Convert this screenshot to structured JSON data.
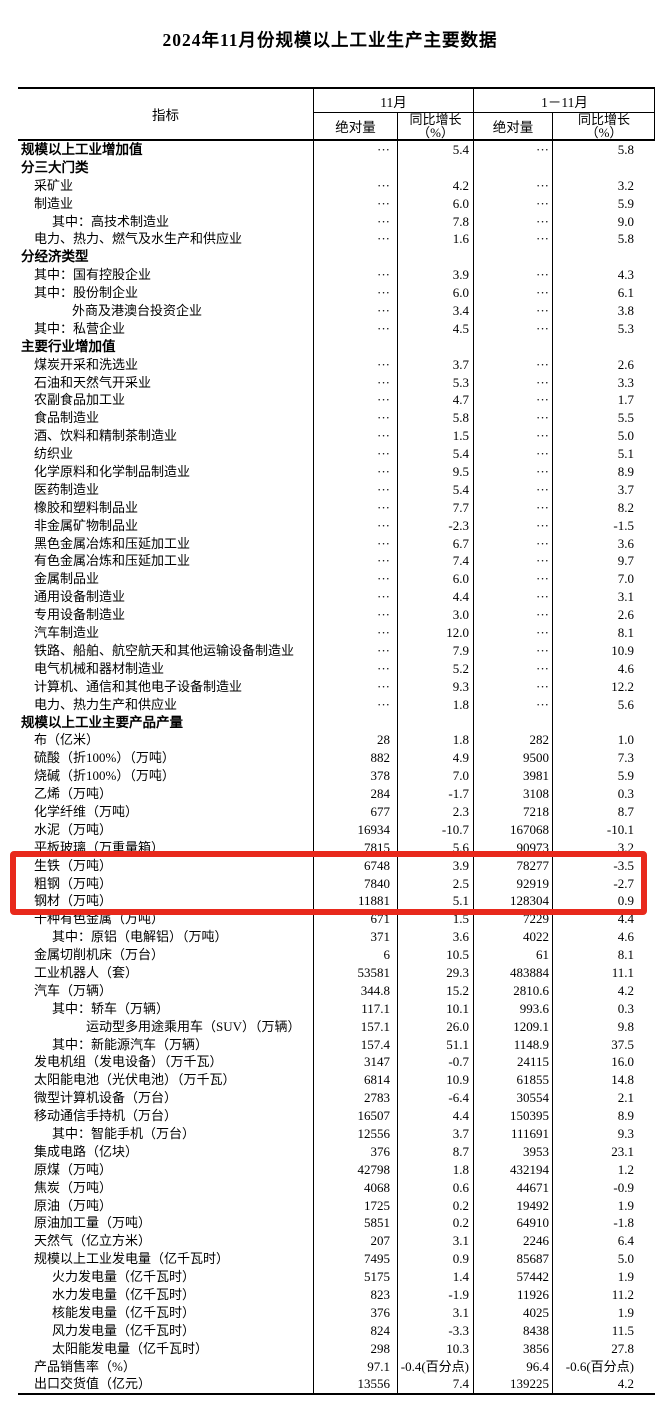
{
  "title": "2024年11月份规模以上工业生产主要数据",
  "table": {
    "highlight_color": "#e8291c",
    "header": {
      "indicator": "指标",
      "group_nov": "11月",
      "group_cum": "1－11月",
      "abs_nov": "绝对量",
      "yoy_nov": "同比增长\n（%）",
      "abs_cum": "绝对量",
      "yoy_cum": "同比增长\n（%）"
    },
    "rows": [
      {
        "l": "规模以上工业增加值",
        "i": 0,
        "b": true,
        "v": [
          "···",
          "5.4",
          "···",
          "5.8"
        ]
      },
      {
        "l": "分三大门类",
        "i": 0,
        "b": true,
        "v": [
          "",
          "",
          "",
          ""
        ]
      },
      {
        "l": "采矿业",
        "i": 1,
        "v": [
          "···",
          "4.2",
          "···",
          "3.2"
        ]
      },
      {
        "l": "制造业",
        "i": 1,
        "v": [
          "···",
          "6.0",
          "···",
          "5.9"
        ]
      },
      {
        "l": "其中：高技术制造业",
        "i": 2,
        "v": [
          "···",
          "7.8",
          "···",
          "9.0"
        ]
      },
      {
        "l": "电力、热力、燃气及水生产和供应业",
        "i": 1,
        "v": [
          "···",
          "1.6",
          "···",
          "5.8"
        ]
      },
      {
        "l": "分经济类型",
        "i": 0,
        "b": true,
        "v": [
          "",
          "",
          "",
          ""
        ]
      },
      {
        "l": "其中：国有控股企业",
        "i": 1,
        "v": [
          "···",
          "3.9",
          "···",
          "4.3"
        ]
      },
      {
        "l": "其中：股份制企业",
        "i": 1,
        "v": [
          "···",
          "6.0",
          "···",
          "6.1"
        ]
      },
      {
        "l": "外商及港澳台投资企业",
        "i": 3,
        "v": [
          "···",
          "3.4",
          "···",
          "3.8"
        ]
      },
      {
        "l": "其中：私营企业",
        "i": 1,
        "v": [
          "···",
          "4.5",
          "···",
          "5.3"
        ]
      },
      {
        "l": "主要行业增加值",
        "i": 0,
        "b": true,
        "v": [
          "",
          "",
          "",
          ""
        ]
      },
      {
        "l": "煤炭开采和洗选业",
        "i": 1,
        "v": [
          "···",
          "3.7",
          "···",
          "2.6"
        ]
      },
      {
        "l": "石油和天然气开采业",
        "i": 1,
        "v": [
          "···",
          "5.3",
          "···",
          "3.3"
        ]
      },
      {
        "l": "农副食品加工业",
        "i": 1,
        "v": [
          "···",
          "4.7",
          "···",
          "1.7"
        ]
      },
      {
        "l": "食品制造业",
        "i": 1,
        "v": [
          "···",
          "5.8",
          "···",
          "5.5"
        ]
      },
      {
        "l": "酒、饮料和精制茶制造业",
        "i": 1,
        "v": [
          "···",
          "1.5",
          "···",
          "5.0"
        ]
      },
      {
        "l": "纺织业",
        "i": 1,
        "v": [
          "···",
          "5.4",
          "···",
          "5.1"
        ]
      },
      {
        "l": "化学原料和化学制品制造业",
        "i": 1,
        "v": [
          "···",
          "9.5",
          "···",
          "8.9"
        ]
      },
      {
        "l": "医药制造业",
        "i": 1,
        "v": [
          "···",
          "5.4",
          "···",
          "3.7"
        ]
      },
      {
        "l": "橡胶和塑料制品业",
        "i": 1,
        "v": [
          "···",
          "7.7",
          "···",
          "8.2"
        ]
      },
      {
        "l": "非金属矿物制品业",
        "i": 1,
        "v": [
          "···",
          "-2.3",
          "···",
          "-1.5"
        ]
      },
      {
        "l": "黑色金属冶炼和压延加工业",
        "i": 1,
        "v": [
          "···",
          "6.7",
          "···",
          "3.6"
        ]
      },
      {
        "l": "有色金属冶炼和压延加工业",
        "i": 1,
        "v": [
          "···",
          "7.4",
          "···",
          "9.7"
        ]
      },
      {
        "l": "金属制品业",
        "i": 1,
        "v": [
          "···",
          "6.0",
          "···",
          "7.0"
        ]
      },
      {
        "l": "通用设备制造业",
        "i": 1,
        "v": [
          "···",
          "4.4",
          "···",
          "3.1"
        ]
      },
      {
        "l": "专用设备制造业",
        "i": 1,
        "v": [
          "···",
          "3.0",
          "···",
          "2.6"
        ]
      },
      {
        "l": "汽车制造业",
        "i": 1,
        "v": [
          "···",
          "12.0",
          "···",
          "8.1"
        ]
      },
      {
        "l": "铁路、船舶、航空航天和其他运输设备制造业",
        "i": 1,
        "v": [
          "···",
          "7.9",
          "···",
          "10.9"
        ]
      },
      {
        "l": "电气机械和器材制造业",
        "i": 1,
        "v": [
          "···",
          "5.2",
          "···",
          "4.6"
        ]
      },
      {
        "l": "计算机、通信和其他电子设备制造业",
        "i": 1,
        "v": [
          "···",
          "9.3",
          "···",
          "12.2"
        ]
      },
      {
        "l": "电力、热力生产和供应业",
        "i": 1,
        "v": [
          "···",
          "1.8",
          "···",
          "5.6"
        ]
      },
      {
        "l": "规模以上工业主要产品产量",
        "i": 0,
        "b": true,
        "v": [
          "",
          "",
          "",
          ""
        ]
      },
      {
        "l": "布（亿米）",
        "i": 1,
        "v": [
          "28",
          "1.8",
          "282",
          "1.0"
        ]
      },
      {
        "l": "硫酸（折100%）（万吨）",
        "i": 1,
        "v": [
          "882",
          "4.9",
          "9500",
          "7.3"
        ]
      },
      {
        "l": "烧碱（折100%）（万吨）",
        "i": 1,
        "v": [
          "378",
          "7.0",
          "3981",
          "5.9"
        ]
      },
      {
        "l": "乙烯（万吨）",
        "i": 1,
        "v": [
          "284",
          "-1.7",
          "3108",
          "0.3"
        ]
      },
      {
        "l": "化学纤维（万吨）",
        "i": 1,
        "v": [
          "677",
          "2.3",
          "7218",
          "8.7"
        ]
      },
      {
        "l": "水泥（万吨）",
        "i": 1,
        "v": [
          "16934",
          "-10.7",
          "167068",
          "-10.1"
        ]
      },
      {
        "l": "平板玻璃（万重量箱）",
        "i": 1,
        "v": [
          "7815",
          "5.6",
          "90973",
          "3.2"
        ]
      },
      {
        "l": "生铁（万吨）",
        "i": 1,
        "h": true,
        "v": [
          "6748",
          "3.9",
          "78277",
          "-3.5"
        ]
      },
      {
        "l": "粗钢（万吨）",
        "i": 1,
        "h": true,
        "v": [
          "7840",
          "2.5",
          "92919",
          "-2.7"
        ]
      },
      {
        "l": "钢材（万吨）",
        "i": 1,
        "h": true,
        "v": [
          "11881",
          "5.1",
          "128304",
          "0.9"
        ]
      },
      {
        "l": "十种有色金属（万吨）",
        "i": 1,
        "v": [
          "671",
          "1.5",
          "7229",
          "4.4"
        ]
      },
      {
        "l": "其中：原铝（电解铝）（万吨）",
        "i": 2,
        "v": [
          "371",
          "3.6",
          "4022",
          "4.6"
        ]
      },
      {
        "l": "金属切削机床（万台）",
        "i": 1,
        "v": [
          "6",
          "10.5",
          "61",
          "8.1"
        ]
      },
      {
        "l": "工业机器人（套）",
        "i": 1,
        "v": [
          "53581",
          "29.3",
          "483884",
          "11.1"
        ]
      },
      {
        "l": "汽车（万辆）",
        "i": 1,
        "v": [
          "344.8",
          "15.2",
          "2810.6",
          "4.2"
        ]
      },
      {
        "l": "其中：轿车（万辆）",
        "i": 2,
        "v": [
          "117.1",
          "10.1",
          "993.6",
          "0.3"
        ]
      },
      {
        "l": "运动型多用途乘用车（SUV）（万辆）",
        "i": 4,
        "v": [
          "157.1",
          "26.0",
          "1209.1",
          "9.8"
        ]
      },
      {
        "l": "其中：新能源汽车（万辆）",
        "i": 2,
        "v": [
          "157.4",
          "51.1",
          "1148.9",
          "37.5"
        ]
      },
      {
        "l": "发电机组（发电设备）（万千瓦）",
        "i": 1,
        "v": [
          "3147",
          "-0.7",
          "24115",
          "16.0"
        ]
      },
      {
        "l": "太阳能电池（光伏电池）（万千瓦）",
        "i": 1,
        "v": [
          "6814",
          "10.9",
          "61855",
          "14.8"
        ]
      },
      {
        "l": "微型计算机设备（万台）",
        "i": 1,
        "v": [
          "2783",
          "-6.4",
          "30554",
          "2.1"
        ]
      },
      {
        "l": "移动通信手持机（万台）",
        "i": 1,
        "v": [
          "16507",
          "4.4",
          "150395",
          "8.9"
        ]
      },
      {
        "l": "其中：智能手机（万台）",
        "i": 2,
        "v": [
          "12556",
          "3.7",
          "111691",
          "9.3"
        ]
      },
      {
        "l": "集成电路（亿块）",
        "i": 1,
        "v": [
          "376",
          "8.7",
          "3953",
          "23.1"
        ]
      },
      {
        "l": "原煤（万吨）",
        "i": 1,
        "v": [
          "42798",
          "1.8",
          "432194",
          "1.2"
        ]
      },
      {
        "l": "焦炭（万吨）",
        "i": 1,
        "v": [
          "4068",
          "0.6",
          "44671",
          "-0.9"
        ]
      },
      {
        "l": "原油（万吨）",
        "i": 1,
        "v": [
          "1725",
          "0.2",
          "19492",
          "1.9"
        ]
      },
      {
        "l": "原油加工量（万吨）",
        "i": 1,
        "v": [
          "5851",
          "0.2",
          "64910",
          "-1.8"
        ]
      },
      {
        "l": "天然气（亿立方米）",
        "i": 1,
        "v": [
          "207",
          "3.1",
          "2246",
          "6.4"
        ]
      },
      {
        "l": "规模以上工业发电量（亿千瓦时）",
        "i": 1,
        "v": [
          "7495",
          "0.9",
          "85687",
          "5.0"
        ]
      },
      {
        "l": "火力发电量（亿千瓦时）",
        "i": 2,
        "v": [
          "5175",
          "1.4",
          "57442",
          "1.9"
        ]
      },
      {
        "l": "水力发电量（亿千瓦时）",
        "i": 2,
        "v": [
          "823",
          "-1.9",
          "11926",
          "11.2"
        ]
      },
      {
        "l": "核能发电量（亿千瓦时）",
        "i": 2,
        "v": [
          "376",
          "3.1",
          "4025",
          "1.9"
        ]
      },
      {
        "l": "风力发电量（亿千瓦时）",
        "i": 2,
        "v": [
          "824",
          "-3.3",
          "8438",
          "11.5"
        ]
      },
      {
        "l": "太阳能发电量（亿千瓦时）",
        "i": 2,
        "v": [
          "298",
          "10.3",
          "3856",
          "27.8"
        ]
      },
      {
        "l": "产品销售率（%）",
        "i": 1,
        "v": [
          "97.1",
          "-0.4(百分点)",
          "96.4",
          "-0.6(百分点)"
        ]
      },
      {
        "l": "出口交货值（亿元）",
        "i": 1,
        "v": [
          "13556",
          "7.4",
          "139225",
          "4.2"
        ]
      }
    ]
  }
}
